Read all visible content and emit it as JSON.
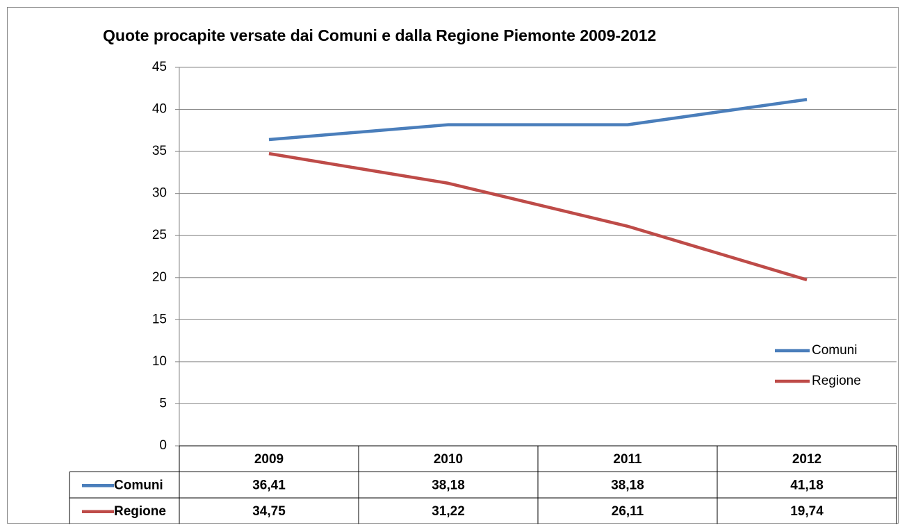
{
  "chart_data": {
    "type": "line",
    "title": "Quote procapite versate dai Comuni e dalla Regione Piemonte 2009-2012",
    "categories": [
      "2009",
      "2010",
      "2011",
      "2012"
    ],
    "series": [
      {
        "name": "Comuni",
        "color": "#4a7ebb",
        "values": [
          36.41,
          38.18,
          38.18,
          41.18
        ],
        "value_labels": [
          "36,41",
          "38,18",
          "38,18",
          "41,18"
        ]
      },
      {
        "name": "Regione",
        "color": "#be4b48",
        "values": [
          34.75,
          31.22,
          26.11,
          19.74
        ],
        "value_labels": [
          "34,75",
          "31,22",
          "26,11",
          "19,74"
        ]
      }
    ],
    "ylim": [
      0,
      45
    ],
    "yticks": [
      0,
      5,
      10,
      15,
      20,
      25,
      30,
      35,
      40,
      45
    ],
    "grid": true,
    "legend": "right",
    "data_table": true
  }
}
